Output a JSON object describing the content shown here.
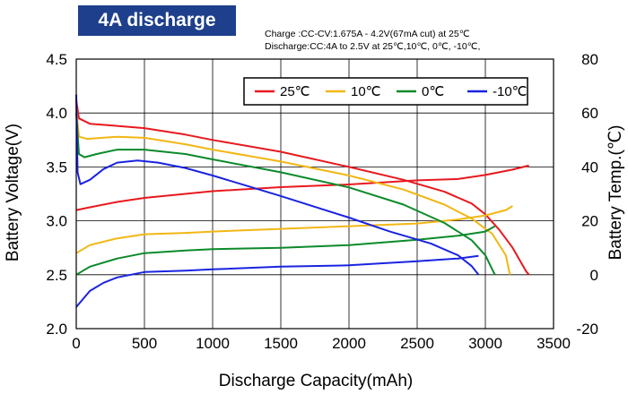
{
  "badge": "4A discharge",
  "conditions": {
    "charge": "Charge :CC-CV:1.675A - 4.2V(67mA cut) at 25℃",
    "discharge": "Discharge:CC:4A to 2.5V at 25℃,10℃, 0℃, -10℃,"
  },
  "chart_data": {
    "type": "line",
    "xlabel": "Discharge Capacity(mAh)",
    "ylabel": "Battery Voltage(V)",
    "y2label": "Battery Temp.(℃)",
    "xlim": [
      0,
      3500
    ],
    "ylim": [
      2.0,
      4.5
    ],
    "y2lim": [
      -20,
      80
    ],
    "x_ticks": [
      "0",
      "500",
      "1000",
      "1500",
      "2000",
      "2500",
      "3000",
      "3500"
    ],
    "y_ticks": [
      "2.0",
      "2.5",
      "3.0",
      "3.5",
      "4.0",
      "4.5"
    ],
    "y2_ticks": [
      "-20",
      "0",
      "20",
      "40",
      "60",
      "80"
    ],
    "grid": true,
    "legend_position": "top-right",
    "series": [
      {
        "name": "25℃",
        "color": "#e8191e",
        "voltage": [
          [
            0,
            4.12
          ],
          [
            20,
            3.95
          ],
          [
            100,
            3.9
          ],
          [
            300,
            3.88
          ],
          [
            500,
            3.86
          ],
          [
            800,
            3.8
          ],
          [
            1000,
            3.75
          ],
          [
            1500,
            3.64
          ],
          [
            2000,
            3.5
          ],
          [
            2400,
            3.38
          ],
          [
            2700,
            3.27
          ],
          [
            2900,
            3.16
          ],
          [
            3000,
            3.06
          ],
          [
            3100,
            2.92
          ],
          [
            3200,
            2.75
          ],
          [
            3300,
            2.53
          ],
          [
            3320,
            2.5
          ]
        ],
        "temperature": [
          [
            0,
            24
          ],
          [
            100,
            25
          ],
          [
            300,
            27
          ],
          [
            500,
            28.5
          ],
          [
            800,
            30
          ],
          [
            1000,
            31
          ],
          [
            1500,
            32.5
          ],
          [
            2000,
            33.5
          ],
          [
            2500,
            35
          ],
          [
            2800,
            35.5
          ],
          [
            3000,
            37
          ],
          [
            3200,
            39
          ],
          [
            3320,
            40.5
          ]
        ]
      },
      {
        "name": "10℃",
        "color": "#f2b714",
        "voltage": [
          [
            0,
            4.05
          ],
          [
            20,
            3.78
          ],
          [
            80,
            3.76
          ],
          [
            300,
            3.78
          ],
          [
            500,
            3.77
          ],
          [
            800,
            3.71
          ],
          [
            1000,
            3.66
          ],
          [
            1500,
            3.55
          ],
          [
            2000,
            3.42
          ],
          [
            2400,
            3.29
          ],
          [
            2700,
            3.15
          ],
          [
            2900,
            3.02
          ],
          [
            3050,
            2.88
          ],
          [
            3150,
            2.68
          ],
          [
            3180,
            2.5
          ]
        ],
        "temperature": [
          [
            0,
            8
          ],
          [
            100,
            11
          ],
          [
            300,
            13.5
          ],
          [
            500,
            15
          ],
          [
            800,
            15.5
          ],
          [
            1000,
            16
          ],
          [
            1500,
            17
          ],
          [
            2000,
            18
          ],
          [
            2500,
            19
          ],
          [
            2800,
            20.5
          ],
          [
            3000,
            22
          ],
          [
            3150,
            24
          ],
          [
            3200,
            25.5
          ]
        ]
      },
      {
        "name": "0℃",
        "color": "#0c8a2a",
        "voltage": [
          [
            0,
            4.0
          ],
          [
            20,
            3.62
          ],
          [
            60,
            3.59
          ],
          [
            150,
            3.62
          ],
          [
            300,
            3.66
          ],
          [
            500,
            3.66
          ],
          [
            800,
            3.62
          ],
          [
            1000,
            3.57
          ],
          [
            1500,
            3.45
          ],
          [
            2000,
            3.31
          ],
          [
            2400,
            3.15
          ],
          [
            2700,
            2.98
          ],
          [
            2900,
            2.82
          ],
          [
            3000,
            2.68
          ],
          [
            3070,
            2.5
          ]
        ],
        "temperature": [
          [
            0,
            0
          ],
          [
            100,
            3
          ],
          [
            300,
            6
          ],
          [
            500,
            8
          ],
          [
            800,
            9
          ],
          [
            1000,
            9.5
          ],
          [
            1500,
            10
          ],
          [
            2000,
            11
          ],
          [
            2500,
            13
          ],
          [
            2800,
            14.5
          ],
          [
            3000,
            16
          ],
          [
            3070,
            18
          ]
        ]
      },
      {
        "name": "-10℃",
        "color": "#1a23e0",
        "voltage": [
          [
            0,
            4.17
          ],
          [
            10,
            3.45
          ],
          [
            30,
            3.34
          ],
          [
            100,
            3.38
          ],
          [
            200,
            3.48
          ],
          [
            300,
            3.54
          ],
          [
            450,
            3.56
          ],
          [
            600,
            3.54
          ],
          [
            800,
            3.49
          ],
          [
            1000,
            3.42
          ],
          [
            1500,
            3.23
          ],
          [
            2000,
            3.03
          ],
          [
            2300,
            2.9
          ],
          [
            2600,
            2.79
          ],
          [
            2800,
            2.68
          ],
          [
            2900,
            2.58
          ],
          [
            2950,
            2.5
          ]
        ],
        "temperature": [
          [
            0,
            -12
          ],
          [
            100,
            -6
          ],
          [
            200,
            -3
          ],
          [
            300,
            -1
          ],
          [
            500,
            1
          ],
          [
            800,
            1.5
          ],
          [
            1000,
            2
          ],
          [
            1500,
            3
          ],
          [
            2000,
            3.5
          ],
          [
            2500,
            5
          ],
          [
            2800,
            6
          ],
          [
            2950,
            7
          ]
        ]
      }
    ]
  }
}
